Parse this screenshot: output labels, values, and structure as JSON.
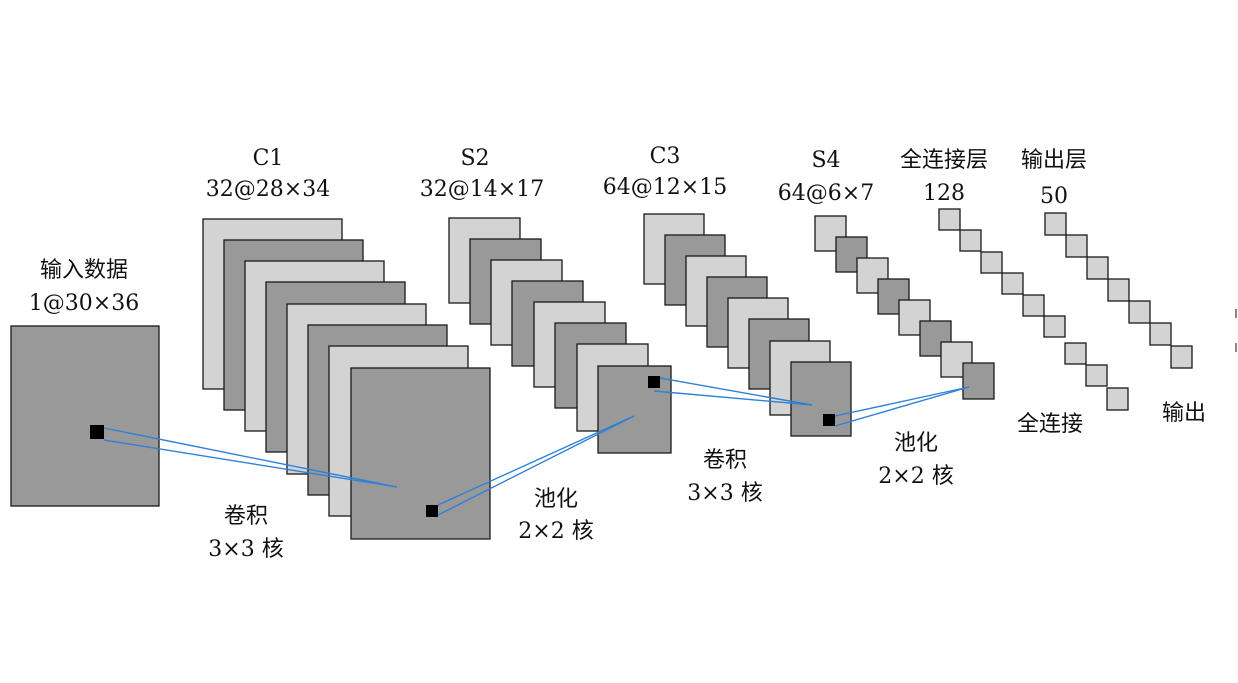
{
  "layers": {
    "input": {
      "name": "输入数据",
      "size": "1@30×36"
    },
    "c1": {
      "name": "C1",
      "size": "32@28×34"
    },
    "s2": {
      "name": "S2",
      "size": "32@14×17"
    },
    "c3": {
      "name": "C3",
      "size": "64@12×15"
    },
    "s4": {
      "name": "S4",
      "size": "64@6×7"
    },
    "fc": {
      "name": "全连接层",
      "size": "128"
    },
    "output": {
      "name": "输出层",
      "size": "50"
    }
  },
  "operations": {
    "conv1": {
      "name": "卷积",
      "kernel": "3×3 核"
    },
    "pool1": {
      "name": "池化",
      "kernel": "2×2 核"
    },
    "conv2": {
      "name": "卷积",
      "kernel": "3×3 核"
    },
    "pool2": {
      "name": "池化",
      "kernel": "2×2 核"
    },
    "fully_connected": {
      "name": "全连接"
    },
    "output": {
      "name": "输出"
    }
  },
  "colors": {
    "dark_map": "#999999",
    "light_map": "#d3d3d3",
    "connector": "#2f80d6"
  }
}
